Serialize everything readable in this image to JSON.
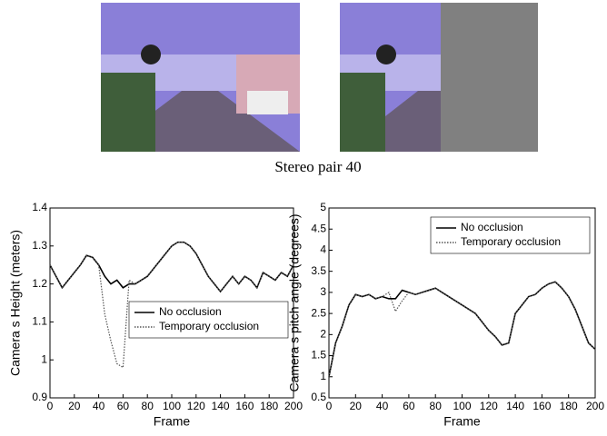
{
  "caption": "Stereo pair 40",
  "chart_data": [
    {
      "type": "line",
      "xlabel": "Frame",
      "ylabel": "Camera s Height (meters)",
      "x": [
        0,
        5,
        10,
        15,
        20,
        25,
        30,
        35,
        40,
        45,
        50,
        55,
        60,
        65,
        70,
        75,
        80,
        85,
        90,
        95,
        100,
        105,
        110,
        115,
        120,
        125,
        130,
        135,
        140,
        145,
        150,
        155,
        160,
        165,
        170,
        175,
        180,
        185,
        190,
        195,
        200
      ],
      "series": [
        {
          "name": "No occlusion",
          "color": "#000000",
          "style": "solid",
          "values": [
            1.25,
            1.22,
            1.19,
            1.21,
            1.23,
            1.25,
            1.275,
            1.27,
            1.25,
            1.22,
            1.2,
            1.21,
            1.19,
            1.2,
            1.2,
            1.21,
            1.22,
            1.24,
            1.26,
            1.28,
            1.3,
            1.31,
            1.31,
            1.3,
            1.28,
            1.25,
            1.22,
            1.2,
            1.18,
            1.2,
            1.22,
            1.2,
            1.22,
            1.21,
            1.19,
            1.23,
            1.22,
            1.21,
            1.23,
            1.22,
            1.25
          ]
        },
        {
          "name": "Temporary occlusion",
          "color": "#555555",
          "style": "dotted",
          "values": [
            1.25,
            1.22,
            1.19,
            1.21,
            1.23,
            1.25,
            1.275,
            1.27,
            1.25,
            1.12,
            1.05,
            0.99,
            0.98,
            1.21,
            1.2,
            1.21,
            1.22,
            1.24,
            1.26,
            1.28,
            1.3,
            1.31,
            1.31,
            1.3,
            1.28,
            1.25,
            1.22,
            1.2,
            1.18,
            1.2,
            1.22,
            1.2,
            1.22,
            1.21,
            1.19,
            1.23,
            1.22,
            1.21,
            1.23,
            1.22,
            1.25
          ]
        }
      ],
      "xlim": [
        0,
        200
      ],
      "xticks": [
        0,
        20,
        40,
        60,
        80,
        100,
        120,
        140,
        160,
        180,
        200
      ],
      "ylim": [
        0.9,
        1.4
      ],
      "yticks": [
        0.9,
        1,
        1.1,
        1.2,
        1.3,
        1.4
      ],
      "legend": "lower right"
    },
    {
      "type": "line",
      "xlabel": "Frame",
      "ylabel": "Camera s pitch angle (degrees)",
      "x": [
        0,
        5,
        10,
        15,
        20,
        25,
        30,
        35,
        40,
        45,
        50,
        55,
        60,
        65,
        70,
        75,
        80,
        85,
        90,
        95,
        100,
        105,
        110,
        115,
        120,
        125,
        130,
        135,
        140,
        145,
        150,
        155,
        160,
        165,
        170,
        175,
        180,
        185,
        190,
        195,
        200
      ],
      "series": [
        {
          "name": "No occlusion",
          "color": "#000000",
          "style": "solid",
          "values": [
            1.0,
            1.8,
            2.2,
            2.7,
            2.95,
            2.9,
            2.95,
            2.85,
            2.9,
            2.85,
            2.85,
            3.05,
            3.0,
            2.95,
            3.0,
            3.05,
            3.1,
            3.0,
            2.9,
            2.8,
            2.7,
            2.6,
            2.5,
            2.3,
            2.1,
            1.95,
            1.75,
            1.8,
            2.5,
            2.7,
            2.9,
            2.95,
            3.1,
            3.2,
            3.25,
            3.1,
            2.9,
            2.6,
            2.2,
            1.8,
            1.65
          ]
        },
        {
          "name": "Temporary occlusion",
          "color": "#555555",
          "style": "dotted",
          "values": [
            1.0,
            1.8,
            2.2,
            2.7,
            2.95,
            2.9,
            2.95,
            2.85,
            2.9,
            3.0,
            2.55,
            2.8,
            3.0,
            2.95,
            3.0,
            3.05,
            3.1,
            3.0,
            2.9,
            2.8,
            2.7,
            2.6,
            2.5,
            2.3,
            2.1,
            1.95,
            1.75,
            1.8,
            2.5,
            2.7,
            2.9,
            2.95,
            3.1,
            3.2,
            3.25,
            3.1,
            2.9,
            2.6,
            2.2,
            1.8,
            1.65
          ]
        }
      ],
      "xlim": [
        0,
        200
      ],
      "xticks": [
        0,
        20,
        40,
        60,
        80,
        100,
        120,
        140,
        160,
        180,
        200
      ],
      "ylim": [
        0.5,
        5
      ],
      "yticks": [
        0.5,
        1,
        1.5,
        2,
        2.5,
        3,
        3.5,
        4,
        4.5,
        5
      ],
      "legend": "upper right"
    }
  ]
}
